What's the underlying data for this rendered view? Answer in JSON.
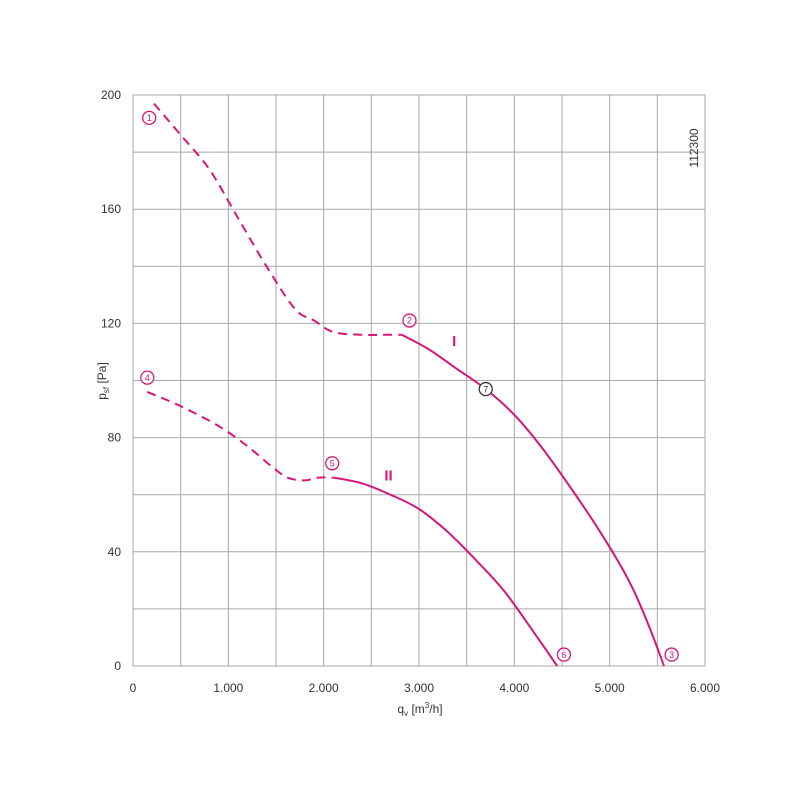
{
  "chart_data": {
    "type": "line",
    "title": "",
    "xlabel": "q",
    "xlabel_sub": "v",
    "xlabel_unit_pre": " [m",
    "xlabel_unit_sup": "3",
    "xlabel_unit_post": "/h]",
    "ylabel": "p",
    "ylabel_sub": "sf",
    "ylabel_unit": " [Pa]",
    "xlim": [
      0,
      6000
    ],
    "ylim": [
      0,
      200
    ],
    "x_ticks": [
      0,
      1000,
      2000,
      3000,
      4000,
      5000,
      6000
    ],
    "x_tick_labels": [
      "0",
      "1.000",
      "2.000",
      "3.000",
      "4.000",
      "5.000",
      "6.000"
    ],
    "y_ticks": [
      0,
      40,
      80,
      120,
      160,
      200
    ],
    "y_tick_labels": [
      "0",
      "40",
      "80",
      "120",
      "160",
      "200"
    ],
    "grid": true,
    "code_label": "112300",
    "line_color": "#d6177a",
    "series": [
      {
        "name": "I",
        "dashed": [
          [
            220,
            197
          ],
          [
            500,
            186
          ],
          [
            800,
            174
          ],
          [
            1100,
            157
          ],
          [
            1400,
            140
          ],
          [
            1700,
            125
          ],
          [
            1900,
            121
          ],
          [
            2100,
            117
          ],
          [
            2400,
            116
          ],
          [
            2650,
            116
          ],
          [
            2820,
            116
          ]
        ],
        "solid": [
          [
            2820,
            116
          ],
          [
            3100,
            111
          ],
          [
            3400,
            104
          ],
          [
            3700,
            97
          ],
          [
            4000,
            88
          ],
          [
            4300,
            76
          ],
          [
            4600,
            62
          ],
          [
            4900,
            47
          ],
          [
            5200,
            30
          ],
          [
            5400,
            15
          ],
          [
            5570,
            0
          ]
        ]
      },
      {
        "name": "II",
        "dashed": [
          [
            150,
            96
          ],
          [
            500,
            91
          ],
          [
            900,
            84
          ],
          [
            1200,
            77
          ],
          [
            1450,
            70
          ],
          [
            1620,
            66
          ],
          [
            1800,
            65
          ],
          [
            1950,
            66
          ],
          [
            2100,
            66
          ]
        ],
        "solid": [
          [
            2100,
            66
          ],
          [
            2400,
            64
          ],
          [
            2700,
            60
          ],
          [
            3000,
            55
          ],
          [
            3300,
            47
          ],
          [
            3600,
            37
          ],
          [
            3900,
            26
          ],
          [
            4200,
            12
          ],
          [
            4450,
            0
          ]
        ]
      }
    ],
    "markers": [
      {
        "label": "1",
        "x": 170,
        "y": 192,
        "color": "#d6177a"
      },
      {
        "label": "2",
        "x": 2900,
        "y": 121,
        "color": "#d6177a"
      },
      {
        "label": "3",
        "x": 5650,
        "y": 4,
        "color": "#d6177a"
      },
      {
        "label": "4",
        "x": 150,
        "y": 101,
        "color": "#d6177a"
      },
      {
        "label": "5",
        "x": 2090,
        "y": 71,
        "color": "#d6177a"
      },
      {
        "label": "6",
        "x": 4520,
        "y": 4,
        "color": "#d6177a"
      },
      {
        "label": "7",
        "x": 3700,
        "y": 97,
        "color": "#333333"
      }
    ],
    "curve_labels": [
      {
        "text": "I",
        "x": 3370,
        "y": 112
      },
      {
        "text": "II",
        "x": 2680,
        "y": 65
      }
    ]
  }
}
